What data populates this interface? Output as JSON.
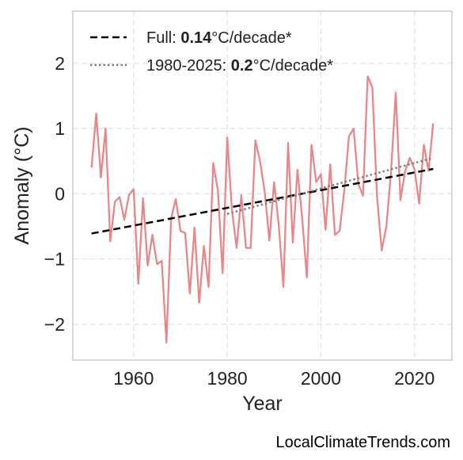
{
  "chart_data": {
    "type": "line",
    "title": "",
    "xlabel": "Year",
    "ylabel": "Anomaly (°C)",
    "xlim": [
      1947,
      2028
    ],
    "ylim": [
      -2.55,
      2.8
    ],
    "xticks": [
      1960,
      1980,
      2000,
      2020
    ],
    "xtick_labels": [
      "1960",
      "1980",
      "2000",
      "2020"
    ],
    "yticks": [
      -2,
      -1,
      0,
      1,
      2
    ],
    "ytick_labels": [
      "−2",
      "−1",
      "0",
      "1",
      "2"
    ],
    "grid": true,
    "legend_position": "top-left",
    "series": [
      {
        "role": "anomaly",
        "color": "#e8878a",
        "x": [
          1951,
          1952,
          1953,
          1954,
          1955,
          1956,
          1957,
          1958,
          1959,
          1960,
          1961,
          1962,
          1963,
          1964,
          1965,
          1966,
          1967,
          1968,
          1969,
          1970,
          1971,
          1972,
          1973,
          1974,
          1975,
          1976,
          1977,
          1978,
          1979,
          1980,
          1981,
          1982,
          1983,
          1984,
          1985,
          1986,
          1987,
          1988,
          1989,
          1990,
          1991,
          1992,
          1993,
          1994,
          1995,
          1996,
          1997,
          1998,
          1999,
          2000,
          2001,
          2002,
          2003,
          2004,
          2005,
          2006,
          2007,
          2008,
          2009,
          2010,
          2011,
          2012,
          2013,
          2014,
          2015,
          2016,
          2017,
          2018,
          2019,
          2020,
          2021,
          2022,
          2023,
          2024
        ],
        "y": [
          0.4,
          1.23,
          0.25,
          1.0,
          -0.73,
          -0.12,
          -0.05,
          -0.4,
          -0.02,
          0.07,
          -1.38,
          -0.07,
          -1.1,
          -0.63,
          -1.08,
          -1.03,
          -2.28,
          -0.38,
          -0.08,
          -0.57,
          -0.6,
          -1.53,
          -0.52,
          -1.67,
          -0.8,
          -1.43,
          0.47,
          0.05,
          -1.22,
          0.86,
          -0.25,
          -0.83,
          -0.02,
          -0.83,
          -0.83,
          0.82,
          0.5,
          0.03,
          -0.72,
          0.18,
          -0.48,
          -1.43,
          0.78,
          -0.75,
          0.37,
          -0.37,
          -1.28,
          0.75,
          0.18,
          0.3,
          -0.55,
          0.45,
          -0.63,
          -0.57,
          0.05,
          0.88,
          1.0,
          0.15,
          -0.03,
          1.8,
          1.63,
          -0.05,
          -0.87,
          -0.5,
          0.35,
          1.55,
          -0.1,
          0.35,
          0.55,
          0.38,
          -0.15,
          0.75,
          0.35,
          1.08
        ]
      },
      {
        "role": "trend-full",
        "name_prefix": "Full: ",
        "name_value": "0.14",
        "name_suffix": "°C/decade*",
        "color": "#000000",
        "style": "dashed",
        "x": [
          1951,
          2024
        ],
        "y": [
          -0.61,
          0.38
        ]
      },
      {
        "role": "trend-recent",
        "name_prefix": "1980-2025: ",
        "name_value": "0.2",
        "name_suffix": "°C/decade*",
        "color": "#808080",
        "style": "dotted",
        "x": [
          1980,
          2024
        ],
        "y": [
          -0.31,
          0.55
        ]
      }
    ]
  },
  "watermark": "LocalClimateTrends.com"
}
